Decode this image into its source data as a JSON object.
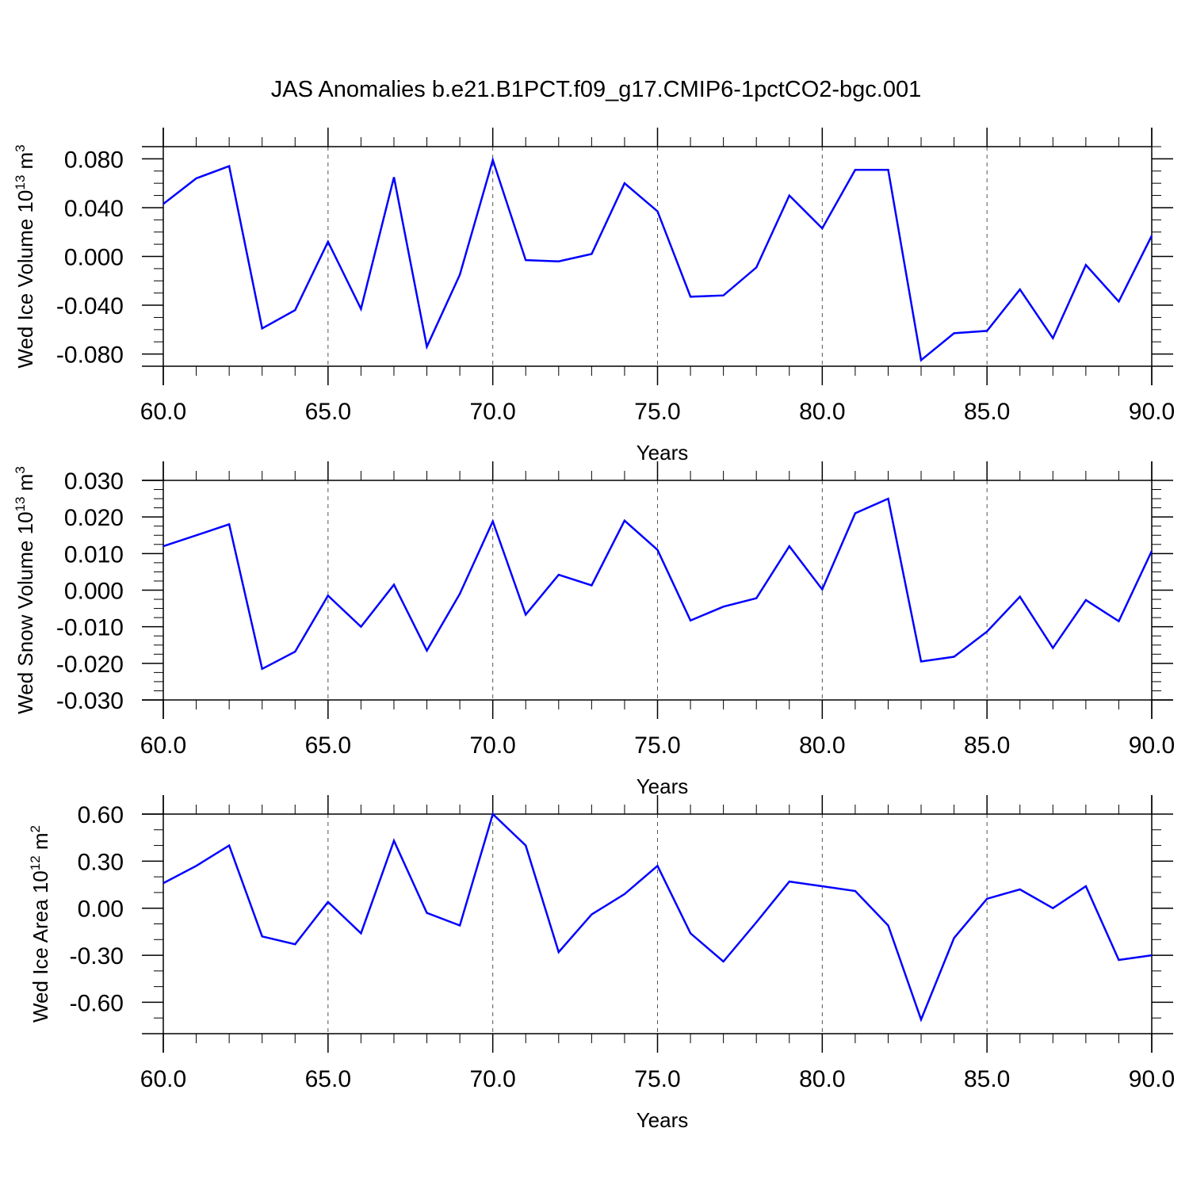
{
  "figure": {
    "title": "JAS Anomalies b.e21.B1PCT.f09_g17.CMIP6-1pctCO2-bgc.001"
  },
  "chart_data": [
    {
      "type": "line",
      "xlabel": "Years",
      "ylabel": {
        "text": "Wed Ice Volume 10",
        "exp": "13",
        "unit": " m",
        "unit_exp": "3"
      },
      "xlim": [
        60,
        90
      ],
      "ylim": [
        -0.09,
        0.09
      ],
      "xticks": [
        60,
        65,
        70,
        75,
        80,
        85,
        90
      ],
      "xtick_labels": [
        "60.0",
        "65.0",
        "70.0",
        "75.0",
        "80.0",
        "85.0",
        "90.0"
      ],
      "yticks": [
        -0.08,
        -0.04,
        0.0,
        0.04,
        0.08
      ],
      "ytick_labels": [
        "-0.080",
        "-0.040",
        "0.000",
        "0.040",
        "0.080"
      ],
      "x_minor_step": 1,
      "y_minor_step": 0.01,
      "grid": "vertical dashed at major x ticks",
      "color": "#0000ff",
      "x": [
        60,
        61,
        62,
        63,
        64,
        65,
        66,
        67,
        68,
        69,
        70,
        71,
        72,
        73,
        74,
        75,
        76,
        77,
        78,
        79,
        80,
        81,
        82,
        83,
        84,
        85,
        86,
        87,
        88,
        89,
        90
      ],
      "values": [
        0.043,
        0.064,
        0.074,
        -0.059,
        -0.044,
        0.012,
        -0.043,
        0.065,
        -0.074,
        -0.015,
        0.079,
        -0.003,
        -0.004,
        0.002,
        0.06,
        0.037,
        -0.033,
        -0.032,
        -0.009,
        0.05,
        0.023,
        0.071,
        0.071,
        -0.085,
        -0.063,
        -0.061,
        -0.027,
        -0.067,
        -0.007,
        -0.037,
        0.017
      ]
    },
    {
      "type": "line",
      "xlabel": "Years",
      "ylabel": {
        "text": "Wed Snow Volume 10",
        "exp": "13",
        "unit": " m",
        "unit_exp": "3"
      },
      "xlim": [
        60,
        90
      ],
      "ylim": [
        -0.03,
        0.03
      ],
      "xticks": [
        60,
        65,
        70,
        75,
        80,
        85,
        90
      ],
      "xtick_labels": [
        "60.0",
        "65.0",
        "70.0",
        "75.0",
        "80.0",
        "85.0",
        "90.0"
      ],
      "yticks": [
        -0.03,
        -0.02,
        -0.01,
        0.0,
        0.01,
        0.02,
        0.03
      ],
      "ytick_labels": [
        "-0.030",
        "-0.020",
        "-0.010",
        "0.000",
        "0.010",
        "0.020",
        "0.030"
      ],
      "x_minor_step": 1,
      "y_minor_step": 0.0025,
      "grid": "vertical dashed at major x ticks",
      "color": "#0000ff",
      "x": [
        60,
        61,
        62,
        63,
        64,
        65,
        66,
        67,
        68,
        69,
        70,
        71,
        72,
        73,
        74,
        75,
        76,
        77,
        78,
        79,
        80,
        81,
        82,
        83,
        84,
        85,
        86,
        87,
        88,
        89,
        90
      ],
      "values": [
        0.012,
        0.015,
        0.018,
        -0.0215,
        -0.0168,
        -0.0015,
        -0.01,
        0.0015,
        -0.0165,
        -0.001,
        0.0188,
        -0.0067,
        0.0042,
        0.0013,
        0.019,
        0.011,
        -0.0083,
        -0.0045,
        -0.0022,
        0.012,
        0.0002,
        0.021,
        0.025,
        -0.0195,
        -0.0182,
        -0.0113,
        -0.0018,
        -0.0158,
        -0.0027,
        -0.0085,
        0.0107
      ]
    },
    {
      "type": "line",
      "xlabel": "Years",
      "ylabel": {
        "text": "Wed Ice Area 10",
        "exp": "12",
        "unit": " m",
        "unit_exp": "2"
      },
      "xlim": [
        60,
        90
      ],
      "ylim": [
        -0.8,
        0.6
      ],
      "xticks": [
        60,
        65,
        70,
        75,
        80,
        85,
        90
      ],
      "xtick_labels": [
        "60.0",
        "65.0",
        "70.0",
        "75.0",
        "80.0",
        "85.0",
        "90.0"
      ],
      "yticks": [
        -0.6,
        -0.3,
        0.0,
        0.3,
        0.6
      ],
      "ytick_labels": [
        "-0.60",
        "-0.30",
        "0.00",
        "0.30",
        "0.60"
      ],
      "x_minor_step": 1,
      "y_minor_step": 0.1,
      "grid": "vertical dashed at major x ticks",
      "color": "#0000ff",
      "x": [
        60,
        61,
        62,
        63,
        64,
        65,
        66,
        67,
        68,
        69,
        70,
        71,
        72,
        73,
        74,
        75,
        76,
        77,
        78,
        79,
        80,
        81,
        82,
        83,
        84,
        85,
        86,
        87,
        88,
        89,
        90
      ],
      "values": [
        0.16,
        0.27,
        0.4,
        -0.18,
        -0.23,
        0.04,
        -0.16,
        0.43,
        -0.03,
        -0.11,
        0.6,
        0.4,
        -0.28,
        -0.04,
        0.09,
        0.27,
        -0.16,
        -0.34,
        -0.09,
        0.17,
        0.14,
        0.11,
        -0.11,
        -0.71,
        -0.19,
        0.06,
        0.12,
        0.0,
        0.14,
        -0.33,
        -0.3
      ]
    }
  ]
}
